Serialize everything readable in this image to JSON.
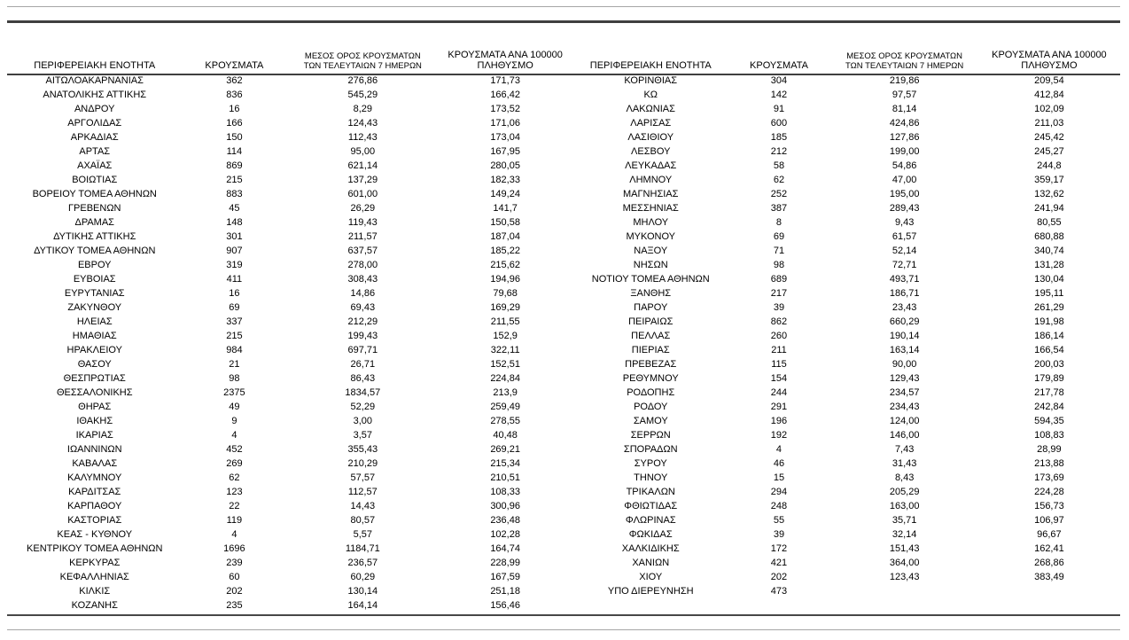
{
  "colors": {
    "background": "#ffffff",
    "text": "#000000",
    "rule_dark": "#3f3f3f",
    "rule_light": "#a6a6a6"
  },
  "table_headers": {
    "region": "ΠΕΡΙΦΕΡΕΙΑΚΗ ΕΝΟΤΗΤΑ",
    "cases": "ΚΡΟΥΣΜΑΤΑ",
    "avg7_line1": "ΜΕΣΟΣ ΟΡΟΣ ΚΡΟΥΣΜΑΤΩΝ",
    "avg7_line2": "ΤΩΝ ΤΕΛΕΥΤΑΙΩΝ 7 ΗΜΕΡΩΝ",
    "per100k_line1": "ΚΡΟΥΣΜΑΤΑ ΑΝΑ 100000",
    "per100k_line2": "ΠΛΗΘΥΣΜΟ"
  },
  "left_table": {
    "rows": [
      [
        "ΑΙΤΩΛΟΑΚΑΡΝΑΝΙΑΣ",
        "362",
        "276,86",
        "171,73"
      ],
      [
        "ΑΝΑΤΟΛΙΚΗΣ ΑΤΤΙΚΗΣ",
        "836",
        "545,29",
        "166,42"
      ],
      [
        "ΑΝΔΡΟΥ",
        "16",
        "8,29",
        "173,52"
      ],
      [
        "ΑΡΓΟΛΙΔΑΣ",
        "166",
        "124,43",
        "171,06"
      ],
      [
        "ΑΡΚΑΔΙΑΣ",
        "150",
        "112,43",
        "173,04"
      ],
      [
        "ΑΡΤΑΣ",
        "114",
        "95,00",
        "167,95"
      ],
      [
        "ΑΧΑΪΑΣ",
        "869",
        "621,14",
        "280,05"
      ],
      [
        "ΒΟΙΩΤΙΑΣ",
        "215",
        "137,29",
        "182,33"
      ],
      [
        "ΒΟΡΕΙΟΥ ΤΟΜΕΑ ΑΘΗΝΩΝ",
        "883",
        "601,00",
        "149,24"
      ],
      [
        "ΓΡΕΒΕΝΩΝ",
        "45",
        "26,29",
        "141,7"
      ],
      [
        "ΔΡΑΜΑΣ",
        "148",
        "119,43",
        "150,58"
      ],
      [
        "ΔΥΤΙΚΗΣ ΑΤΤΙΚΗΣ",
        "301",
        "211,57",
        "187,04"
      ],
      [
        "ΔΥΤΙΚΟΥ ΤΟΜΕΑ ΑΘΗΝΩΝ",
        "907",
        "637,57",
        "185,22"
      ],
      [
        "ΕΒΡΟΥ",
        "319",
        "278,00",
        "215,62"
      ],
      [
        "ΕΥΒΟΙΑΣ",
        "411",
        "308,43",
        "194,96"
      ],
      [
        "ΕΥΡΥΤΑΝΙΑΣ",
        "16",
        "14,86",
        "79,68"
      ],
      [
        "ΖΑΚΥΝΘΟΥ",
        "69",
        "69,43",
        "169,29"
      ],
      [
        "ΗΛΕΙΑΣ",
        "337",
        "212,29",
        "211,55"
      ],
      [
        "ΗΜΑΘΙΑΣ",
        "215",
        "199,43",
        "152,9"
      ],
      [
        "ΗΡΑΚΛΕΙΟΥ",
        "984",
        "697,71",
        "322,11"
      ],
      [
        "ΘΑΣΟΥ",
        "21",
        "26,71",
        "152,51"
      ],
      [
        "ΘΕΣΠΡΩΤΙΑΣ",
        "98",
        "86,43",
        "224,84"
      ],
      [
        "ΘΕΣΣΑΛΟΝΙΚΗΣ",
        "2375",
        "1834,57",
        "213,9"
      ],
      [
        "ΘΗΡΑΣ",
        "49",
        "52,29",
        "259,49"
      ],
      [
        "ΙΘΑΚΗΣ",
        "9",
        "3,00",
        "278,55"
      ],
      [
        "ΙΚΑΡΙΑΣ",
        "4",
        "3,57",
        "40,48"
      ],
      [
        "ΙΩΑΝΝΙΝΩΝ",
        "452",
        "355,43",
        "269,21"
      ],
      [
        "ΚΑΒΑΛΑΣ",
        "269",
        "210,29",
        "215,34"
      ],
      [
        "ΚΑΛΥΜΝΟΥ",
        "62",
        "57,57",
        "210,51"
      ],
      [
        "ΚΑΡΔΙΤΣΑΣ",
        "123",
        "112,57",
        "108,33"
      ],
      [
        "ΚΑΡΠΑΘΟΥ",
        "22",
        "14,43",
        "300,96"
      ],
      [
        "ΚΑΣΤΟΡΙΑΣ",
        "119",
        "80,57",
        "236,48"
      ],
      [
        "ΚΕΑΣ - ΚΥΘΝΟΥ",
        "4",
        "5,57",
        "102,28"
      ],
      [
        "ΚΕΝΤΡΙΚΟΥ ΤΟΜΕΑ ΑΘΗΝΩΝ",
        "1696",
        "1184,71",
        "164,74"
      ],
      [
        "ΚΕΡΚΥΡΑΣ",
        "239",
        "236,57",
        "228,99"
      ],
      [
        "ΚΕΦΑΛΛΗΝΙΑΣ",
        "60",
        "60,29",
        "167,59"
      ],
      [
        "ΚΙΛΚΙΣ",
        "202",
        "130,14",
        "251,18"
      ],
      [
        "ΚΟΖΑΝΗΣ",
        "235",
        "164,14",
        "156,46"
      ]
    ]
  },
  "right_table": {
    "rows": [
      [
        "ΚΟΡΙΝΘΙΑΣ",
        "304",
        "219,86",
        "209,54"
      ],
      [
        "ΚΩ",
        "142",
        "97,57",
        "412,84"
      ],
      [
        "ΛΑΚΩΝΙΑΣ",
        "91",
        "81,14",
        "102,09"
      ],
      [
        "ΛΑΡΙΣΑΣ",
        "600",
        "424,86",
        "211,03"
      ],
      [
        "ΛΑΣΙΘΙΟΥ",
        "185",
        "127,86",
        "245,42"
      ],
      [
        "ΛΕΣΒΟΥ",
        "212",
        "199,00",
        "245,27"
      ],
      [
        "ΛΕΥΚΑΔΑΣ",
        "58",
        "54,86",
        "244,8"
      ],
      [
        "ΛΗΜΝΟΥ",
        "62",
        "47,00",
        "359,17"
      ],
      [
        "ΜΑΓΝΗΣΙΑΣ",
        "252",
        "195,00",
        "132,62"
      ],
      [
        "ΜΕΣΣΗΝΙΑΣ",
        "387",
        "289,43",
        "241,94"
      ],
      [
        "ΜΗΛΟΥ",
        "8",
        "9,43",
        "80,55"
      ],
      [
        "ΜΥΚΟΝΟΥ",
        "69",
        "61,57",
        "680,88"
      ],
      [
        "ΝΑΞΟΥ",
        "71",
        "52,14",
        "340,74"
      ],
      [
        "ΝΗΣΩΝ",
        "98",
        "72,71",
        "131,28"
      ],
      [
        "ΝΟΤΙΟΥ ΤΟΜΕΑ ΑΘΗΝΩΝ",
        "689",
        "493,71",
        "130,04"
      ],
      [
        "ΞΑΝΘΗΣ",
        "217",
        "186,71",
        "195,11"
      ],
      [
        "ΠΑΡΟΥ",
        "39",
        "23,43",
        "261,29"
      ],
      [
        "ΠΕΙΡΑΙΩΣ",
        "862",
        "660,29",
        "191,98"
      ],
      [
        "ΠΕΛΛΑΣ",
        "260",
        "190,14",
        "186,14"
      ],
      [
        "ΠΙΕΡΙΑΣ",
        "211",
        "163,14",
        "166,54"
      ],
      [
        "ΠΡΕΒΕΖΑΣ",
        "115",
        "90,00",
        "200,03"
      ],
      [
        "ΡΕΘΥΜΝΟΥ",
        "154",
        "129,43",
        "179,89"
      ],
      [
        "ΡΟΔΟΠΗΣ",
        "244",
        "234,57",
        "217,78"
      ],
      [
        "ΡΟΔΟΥ",
        "291",
        "234,43",
        "242,84"
      ],
      [
        "ΣΑΜΟΥ",
        "196",
        "124,00",
        "594,35"
      ],
      [
        "ΣΕΡΡΩΝ",
        "192",
        "146,00",
        "108,83"
      ],
      [
        "ΣΠΟΡΑΔΩΝ",
        "4",
        "7,43",
        "28,99"
      ],
      [
        "ΣΥΡΟΥ",
        "46",
        "31,43",
        "213,88"
      ],
      [
        "ΤΗΝΟΥ",
        "15",
        "8,43",
        "173,69"
      ],
      [
        "ΤΡΙΚΑΛΩΝ",
        "294",
        "205,29",
        "224,28"
      ],
      [
        "ΦΘΙΩΤΙΔΑΣ",
        "248",
        "163,00",
        "156,73"
      ],
      [
        "ΦΛΩΡΙΝΑΣ",
        "55",
        "35,71",
        "106,97"
      ],
      [
        "ΦΩΚΙΔΑΣ",
        "39",
        "32,14",
        "96,67"
      ],
      [
        "ΧΑΛΚΙΔΙΚΗΣ",
        "172",
        "151,43",
        "162,41"
      ],
      [
        "ΧΑΝΙΩΝ",
        "421",
        "364,00",
        "268,86"
      ],
      [
        "ΧΙΟΥ",
        "202",
        "123,43",
        "383,49"
      ],
      [
        "ΥΠΟ ΔΙΕΡΕΥΝΗΣΗ",
        "473",
        "",
        ""
      ]
    ]
  }
}
